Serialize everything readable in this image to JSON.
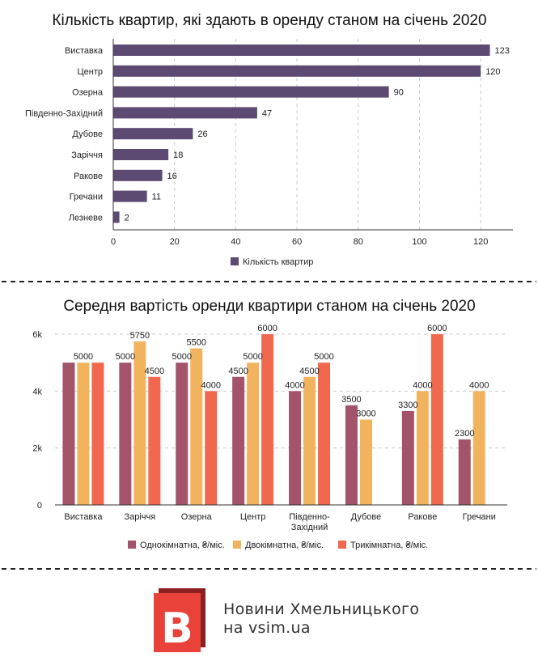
{
  "chart_data": [
    {
      "type": "bar",
      "orientation": "horizontal",
      "title": "Кількість квартир, які здають в оренду станом на січень 2020",
      "categories": [
        "Виставка",
        "Центр",
        "Озерна",
        "Південно-Західний",
        "Дубове",
        "Заріччя",
        "Ракове",
        "Гречани",
        "Лезневе"
      ],
      "series": [
        {
          "name": "Кількість квартир",
          "values": [
            123,
            120,
            90,
            47,
            26,
            18,
            16,
            11,
            2
          ],
          "color": "#5c4a72"
        }
      ],
      "xlim": [
        0,
        130
      ],
      "xticks": [
        "0",
        "20",
        "40",
        "60",
        "80",
        "100",
        "120"
      ],
      "grid": "vertical",
      "legend": "bottom"
    },
    {
      "type": "bar",
      "orientation": "vertical",
      "title": "Середня вартість оренди квартири станом на січень 2020",
      "categories": [
        "Виставка",
        "Заріччя",
        "Озерна",
        "Центр",
        "Південно-\nЗахідний",
        "Дубове",
        "Ракове",
        "Гречани"
      ],
      "series": [
        {
          "name": "Однокімнатна, ₴/міс.",
          "values": [
            5000,
            5000,
            5000,
            4500,
            4000,
            3500,
            3300,
            2300
          ],
          "color": "#a3546a"
        },
        {
          "name": "Двокімнатна, ₴/міс.",
          "values": [
            5000,
            5750,
            5500,
            5000,
            4500,
            3000,
            4000,
            4000
          ],
          "color": "#f2b35f"
        },
        {
          "name": "Трикімнатна, ₴/міс.",
          "values": [
            5000,
            4500,
            4000,
            6000,
            5000,
            null,
            6000,
            null
          ],
          "color": "#f0694f"
        }
      ],
      "data_labels": [
        [
          null,
          "5000",
          null
        ],
        [
          "5000",
          "5750",
          "4500"
        ],
        [
          "5000",
          "5500",
          "4000"
        ],
        [
          "4500",
          "5000",
          "6000"
        ],
        [
          "4000",
          "4500",
          "5000"
        ],
        [
          "3500",
          "3000",
          null
        ],
        [
          "3300",
          "4000",
          "6000"
        ],
        [
          "2300",
          "4000",
          null
        ]
      ],
      "ylim": [
        0,
        6000
      ],
      "yticks": [
        "0",
        "2k",
        "4k",
        "6k"
      ],
      "grid": "horizontal",
      "legend": "bottom"
    }
  ],
  "branding": {
    "logo_letter": "B",
    "line1": "Новини Хмельницького",
    "line2": "на vsim.ua",
    "logo_color": "#e8423b"
  }
}
